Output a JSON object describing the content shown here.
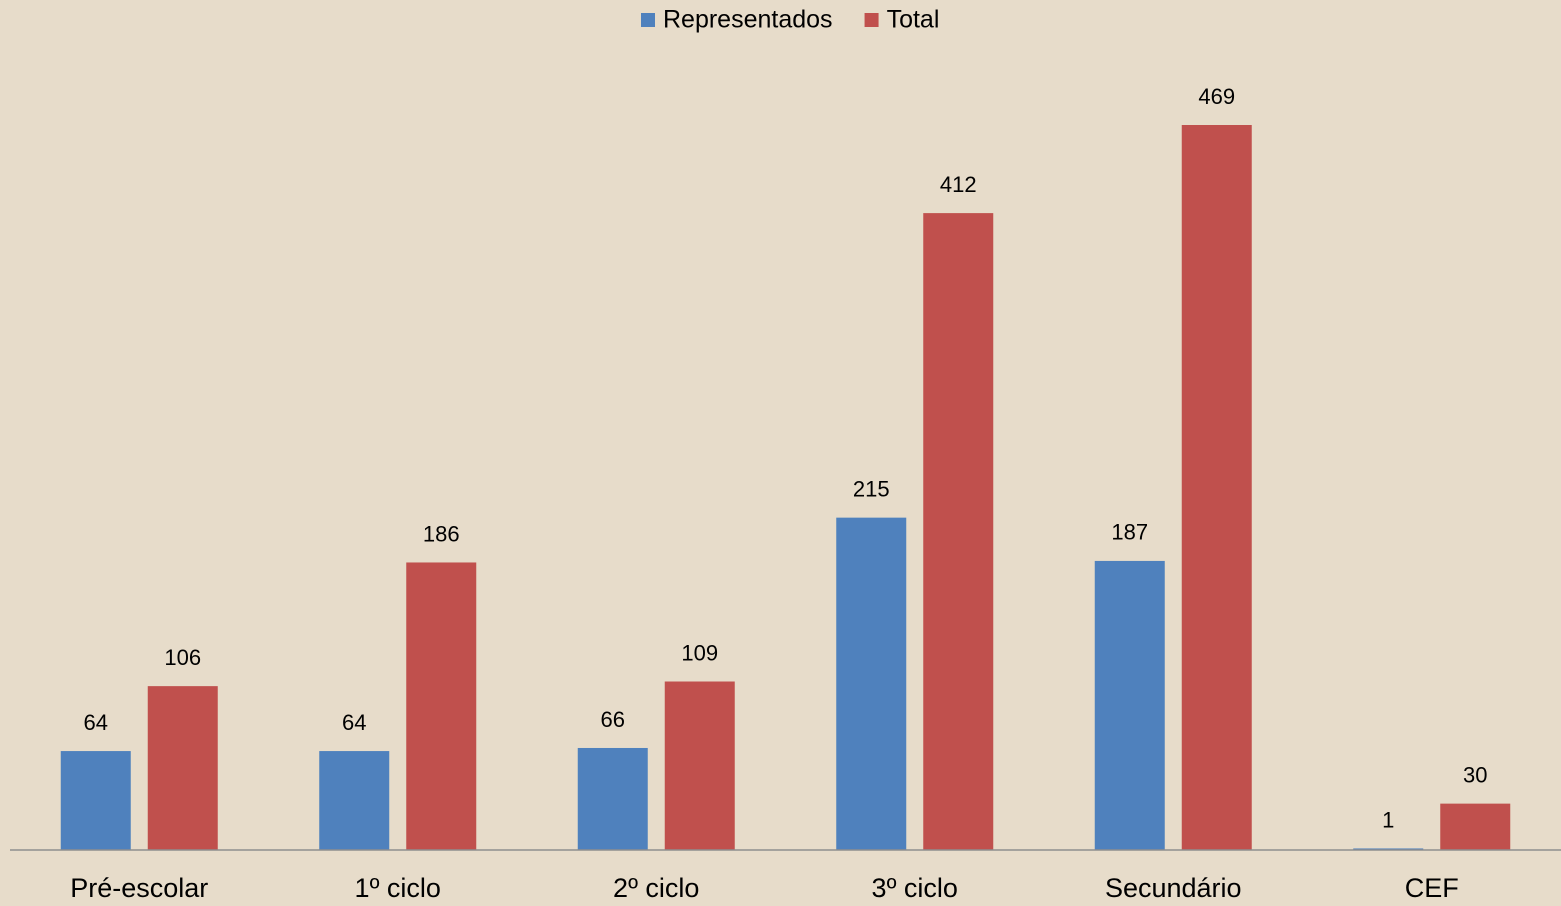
{
  "chart_data": {
    "type": "bar",
    "categories": [
      "Pré-escolar",
      "1º ciclo",
      "2º ciclo",
      "3º ciclo",
      "Secundário",
      "CEF"
    ],
    "series": [
      {
        "name": "Representados",
        "color": "#4f81bd",
        "values": [
          64,
          64,
          66,
          215,
          187,
          1
        ]
      },
      {
        "name": "Total",
        "color": "#c0504d",
        "values": [
          106,
          186,
          109,
          412,
          469,
          30
        ]
      }
    ],
    "legend": "top"
  }
}
